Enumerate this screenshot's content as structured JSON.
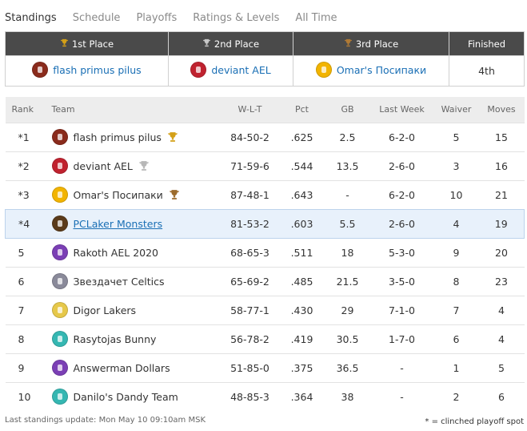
{
  "tabs": [
    {
      "label": "Standings",
      "active": true
    },
    {
      "label": "Schedule",
      "active": false
    },
    {
      "label": "Playoffs",
      "active": false
    },
    {
      "label": "Ratings & Levels",
      "active": false
    },
    {
      "label": "All Time",
      "active": false
    }
  ],
  "places": {
    "headers": [
      "1st Place",
      "2nd Place",
      "3rd Place",
      "Finished"
    ],
    "first": "flash primus pilus",
    "second": "deviant AEL",
    "third": "Omar's Посипаки",
    "finished": "4th"
  },
  "standings": {
    "columns": [
      "Rank",
      "Team",
      "W-L-T",
      "Pct",
      "GB",
      "Last Week",
      "Waiver",
      "Moves"
    ],
    "rows": [
      {
        "rank": "*1",
        "team": "flash primus pilus",
        "wlt": "84-50-2",
        "pct": ".625",
        "gb": "2.5",
        "last_week": "6-2-0",
        "waiver": "5",
        "moves": "15",
        "trophy": "gold",
        "logo_color": "#8a2b1c"
      },
      {
        "rank": "*2",
        "team": "deviant AEL",
        "wlt": "71-59-6",
        "pct": ".544",
        "gb": "13.5",
        "last_week": "2-6-0",
        "waiver": "3",
        "moves": "16",
        "trophy": "silver",
        "logo_color": "#c0222f"
      },
      {
        "rank": "*3",
        "team": "Omar's Посипаки",
        "wlt": "87-48-1",
        "pct": ".643",
        "gb": "-",
        "last_week": "6-2-0",
        "waiver": "10",
        "moves": "21",
        "trophy": "bronze",
        "logo_color": "#f2b400"
      },
      {
        "rank": "*4",
        "team": "PCLaker Monsters",
        "wlt": "81-53-2",
        "pct": ".603",
        "gb": "5.5",
        "last_week": "2-6-0",
        "waiver": "4",
        "moves": "19",
        "trophy": "",
        "logo_color": "#5a3a1a"
      },
      {
        "rank": "5",
        "team": "Rakoth AEL 2020",
        "wlt": "68-65-3",
        "pct": ".511",
        "gb": "18",
        "last_week": "5-3-0",
        "waiver": "9",
        "moves": "20",
        "trophy": "",
        "logo_color": "#7b3fb5"
      },
      {
        "rank": "6",
        "team": "Звездачет Celtics",
        "wlt": "65-69-2",
        "pct": ".485",
        "gb": "21.5",
        "last_week": "3-5-0",
        "waiver": "8",
        "moves": "23",
        "trophy": "",
        "logo_color": "#8a8a9a"
      },
      {
        "rank": "7",
        "team": "Digor Lakers",
        "wlt": "58-77-1",
        "pct": ".430",
        "gb": "29",
        "last_week": "7-1-0",
        "waiver": "7",
        "moves": "4",
        "trophy": "",
        "logo_color": "#e6c84a"
      },
      {
        "rank": "8",
        "team": "Rasytojas Bunny",
        "wlt": "56-78-2",
        "pct": ".419",
        "gb": "30.5",
        "last_week": "1-7-0",
        "waiver": "6",
        "moves": "4",
        "trophy": "",
        "logo_color": "#35b7b2"
      },
      {
        "rank": "9",
        "team": "Answerman Dollars",
        "wlt": "51-85-0",
        "pct": ".375",
        "gb": "36.5",
        "last_week": "-",
        "waiver": "1",
        "moves": "5",
        "trophy": "",
        "logo_color": "#7b3fb5"
      },
      {
        "rank": "10",
        "team": "Danilo's Dandy Team",
        "wlt": "48-85-3",
        "pct": ".364",
        "gb": "38",
        "last_week": "-",
        "waiver": "2",
        "moves": "6",
        "trophy": "",
        "logo_color": "#35b7b2"
      }
    ]
  },
  "footer": {
    "update": "Last standings update: Mon May 10 09:10am MSK",
    "legend": "* = clinched playoff spot"
  },
  "colors": {
    "gold": "#d4a017",
    "silver": "#b8b8b8",
    "bronze": "#9c6b2c",
    "link": "#1a6fb5",
    "highlight": "#e8f1fb"
  }
}
